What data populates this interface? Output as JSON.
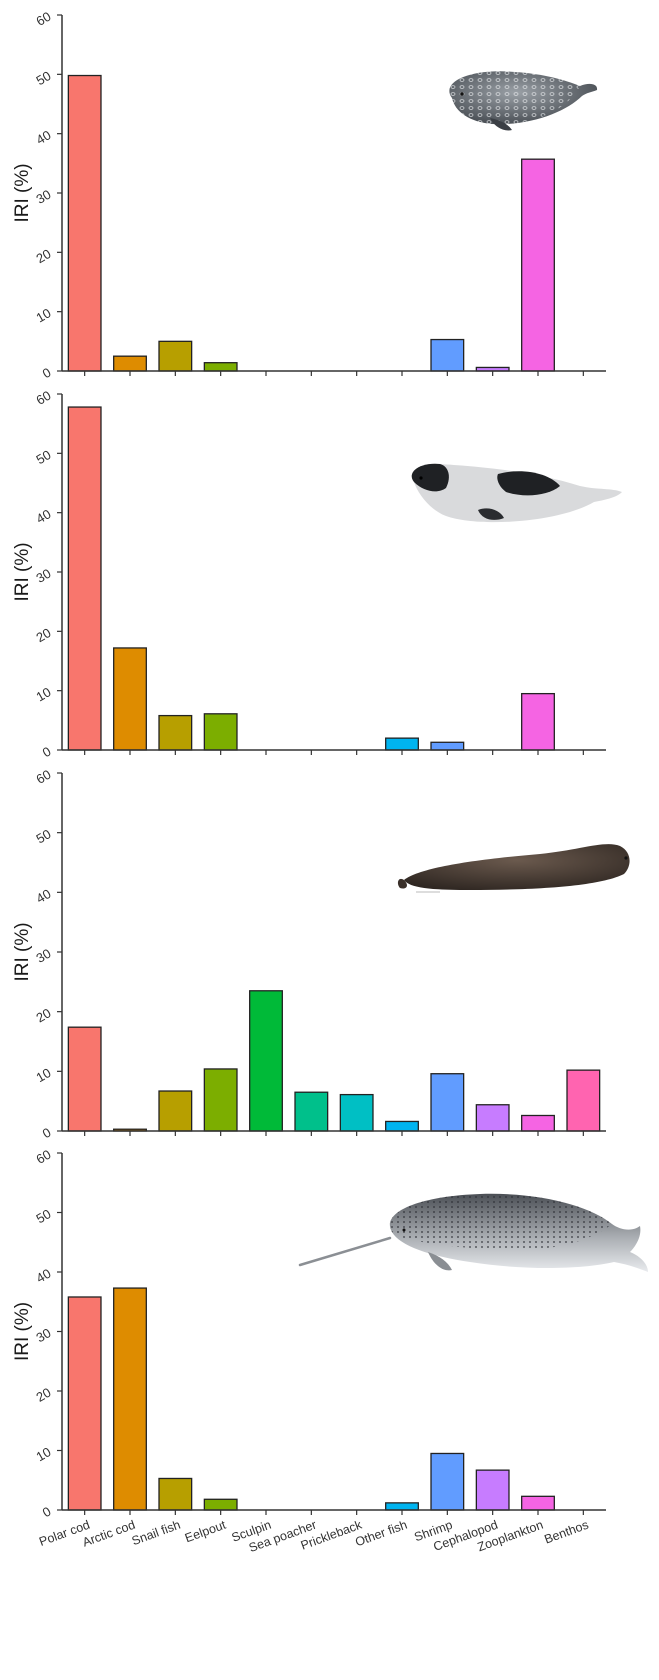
{
  "chart_data": [
    {
      "type": "bar",
      "panel": 1,
      "animal_icon": "ringed-seal-illustration",
      "ylabel": "IRI (%)",
      "ylim": [
        0,
        60
      ],
      "yticks": [
        0,
        10,
        20,
        30,
        40,
        50,
        60
      ],
      "grid": false,
      "categories": [
        "Polar cod",
        "Arctic cod",
        "Snail fish",
        "Eelpout",
        "Sculpin",
        "Sea poacher",
        "Prickleback",
        "Other fish",
        "Shrimp",
        "Cephalopod",
        "Zooplankton",
        "Benthos"
      ],
      "values": [
        49.8,
        2.5,
        5.0,
        1.4,
        0,
        0,
        0,
        0,
        5.3,
        0.6,
        35.7,
        0
      ]
    },
    {
      "type": "bar",
      "panel": 2,
      "animal_icon": "harp-seal-illustration",
      "ylabel": "IRI (%)",
      "ylim": [
        0,
        60
      ],
      "yticks": [
        0,
        10,
        20,
        30,
        40,
        50,
        60
      ],
      "grid": false,
      "categories": [
        "Polar cod",
        "Arctic cod",
        "Snail fish",
        "Eelpout",
        "Sculpin",
        "Sea poacher",
        "Prickleback",
        "Other fish",
        "Shrimp",
        "Cephalopod",
        "Zooplankton",
        "Benthos"
      ],
      "values": [
        57.8,
        17.2,
        5.8,
        6.1,
        0,
        0,
        0,
        2.0,
        1.3,
        0,
        9.5,
        0
      ]
    },
    {
      "type": "bar",
      "panel": 3,
      "animal_icon": "bearded-seal-illustration",
      "ylabel": "IRI (%)",
      "ylim": [
        0,
        60
      ],
      "yticks": [
        0,
        10,
        20,
        30,
        40,
        50,
        60
      ],
      "grid": false,
      "categories": [
        "Polar cod",
        "Arctic cod",
        "Snail fish",
        "Eelpout",
        "Sculpin",
        "Sea poacher",
        "Prickleback",
        "Other fish",
        "Shrimp",
        "Cephalopod",
        "Zooplankton",
        "Benthos"
      ],
      "values": [
        17.4,
        0.3,
        6.7,
        10.4,
        23.5,
        6.5,
        6.1,
        1.6,
        9.6,
        4.4,
        2.6,
        10.2
      ]
    },
    {
      "type": "bar",
      "panel": 4,
      "animal_icon": "narwhal-illustration",
      "ylabel": "IRI (%)",
      "ylim": [
        0,
        60
      ],
      "yticks": [
        0,
        10,
        20,
        30,
        40,
        50,
        60
      ],
      "grid": false,
      "categories": [
        "Polar cod",
        "Arctic cod",
        "Snail fish",
        "Eelpout",
        "Sculpin",
        "Sea poacher",
        "Prickleback",
        "Other fish",
        "Shrimp",
        "Cephalopod",
        "Zooplankton",
        "Benthos"
      ],
      "values": [
        35.8,
        37.3,
        5.3,
        1.8,
        0,
        0,
        0,
        1.2,
        9.5,
        6.7,
        2.3,
        0
      ]
    }
  ],
  "category_colors": [
    "#f8766d",
    "#de8c00",
    "#b79f00",
    "#7cae00",
    "#00ba38",
    "#00c08b",
    "#00bfc4",
    "#00b4f0",
    "#619cff",
    "#c77cff",
    "#f564e3",
    "#ff64b0"
  ],
  "bar_outline_color": "#222222",
  "axis_color": "#333333"
}
